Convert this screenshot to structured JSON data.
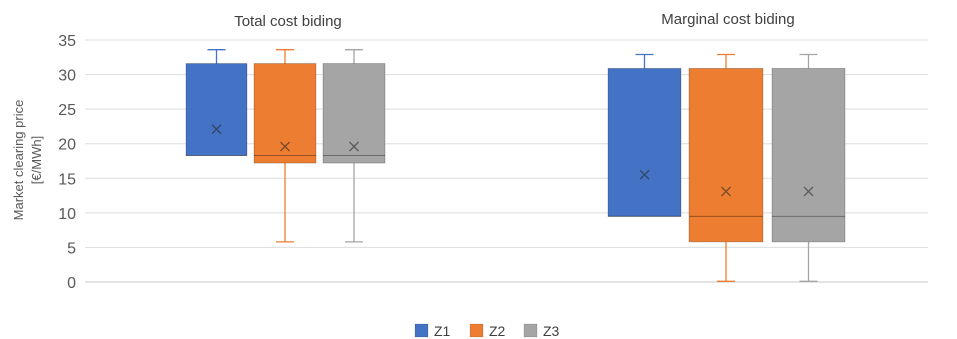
{
  "chart_data": {
    "type": "box",
    "ylabel_lines": [
      "Market clearing price",
      "[€/MWh]"
    ],
    "ylim": [
      0,
      35
    ],
    "yticks": [
      0,
      5,
      10,
      15,
      20,
      25,
      30,
      35
    ],
    "grid": true,
    "legend_position": "bottom",
    "groups": [
      {
        "title": "Total cost biding"
      },
      {
        "title": "Marginal cost biding"
      }
    ],
    "series": [
      {
        "name": "Z1",
        "color": "#4472C4",
        "boxes": [
          {
            "min": 18.3,
            "q1": 18.3,
            "median": 18.3,
            "q3": 31.6,
            "max": 33.6,
            "mean": 22.1
          },
          {
            "min": 9.5,
            "q1": 9.5,
            "median": 9.5,
            "q3": 30.9,
            "max": 32.9,
            "mean": 15.5
          }
        ]
      },
      {
        "name": "Z2",
        "color": "#ED7D31",
        "boxes": [
          {
            "min": 5.8,
            "q1": 17.2,
            "median": 18.3,
            "q3": 31.6,
            "max": 33.6,
            "mean": 19.6
          },
          {
            "min": 0.1,
            "q1": 5.8,
            "median": 9.5,
            "q3": 30.9,
            "max": 32.9,
            "mean": 13.1
          }
        ]
      },
      {
        "name": "Z3",
        "color": "#A5A5A5",
        "boxes": [
          {
            "min": 5.8,
            "q1": 17.2,
            "median": 18.3,
            "q3": 31.6,
            "max": 33.6,
            "mean": 19.6
          },
          {
            "min": 0.1,
            "q1": 5.8,
            "median": 9.5,
            "q3": 30.9,
            "max": 32.9,
            "mean": 13.1
          }
        ]
      }
    ]
  }
}
